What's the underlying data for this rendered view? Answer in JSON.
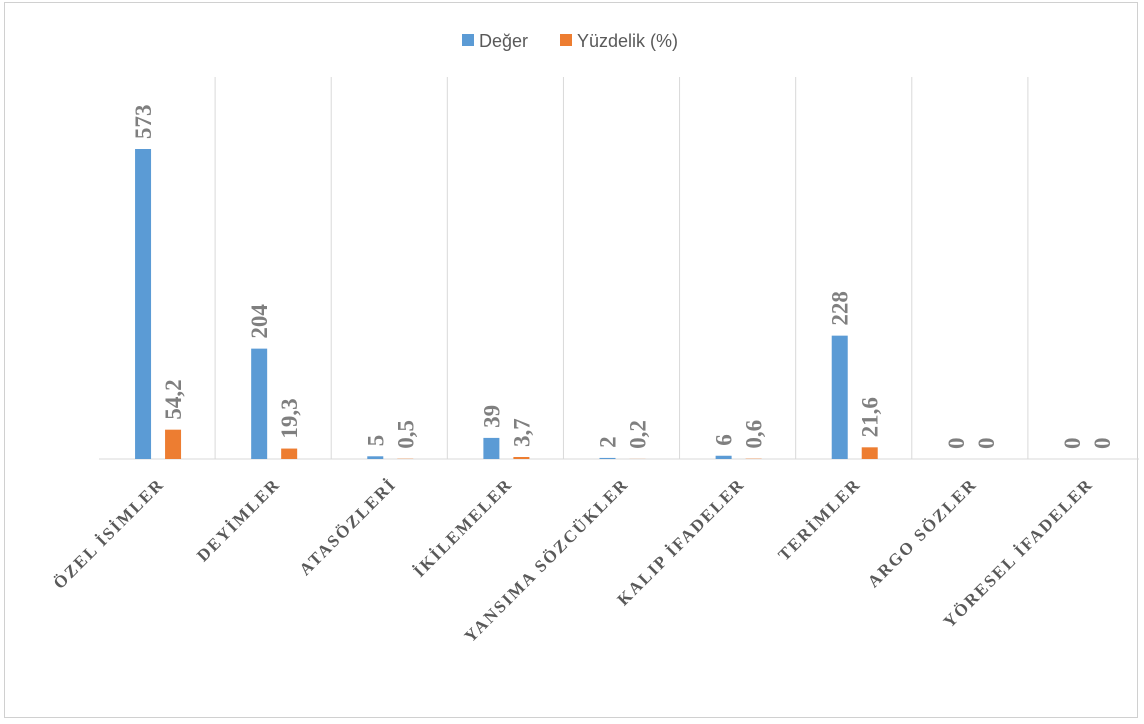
{
  "chart_data": {
    "type": "bar",
    "categories": [
      "ÖZEL İSİMLER",
      "DEYİMLER",
      "ATASÖZLERİ",
      "İKİLEMELER",
      "YANSIMA SÖZCÜKLER",
      "KALIP İFADELER",
      "TERİMLER",
      "ARGO SÖZLER",
      "YÖRESEL İFADELER"
    ],
    "series": [
      {
        "name": "Değer",
        "values": [
          573,
          204,
          5,
          39,
          2,
          6,
          228,
          0,
          0
        ],
        "labels": [
          "573",
          "204",
          "5",
          "39",
          "2",
          "6",
          "228",
          "0",
          "0"
        ],
        "color": "#5b9bd5"
      },
      {
        "name": "Yüzdelik (%)",
        "values": [
          54.2,
          19.3,
          0.5,
          3.7,
          0.2,
          0.6,
          21.6,
          0,
          0
        ],
        "labels": [
          "54,2",
          "19,3",
          "0,5",
          "3,7",
          "0,2",
          "0,6",
          "21,6",
          "0",
          "0"
        ],
        "color": "#ed7d31"
      }
    ],
    "ylim": [
      0,
      700
    ],
    "grid": "vertical category separators",
    "legend_position": "top-center",
    "title": "",
    "xlabel": "",
    "ylabel": ""
  }
}
